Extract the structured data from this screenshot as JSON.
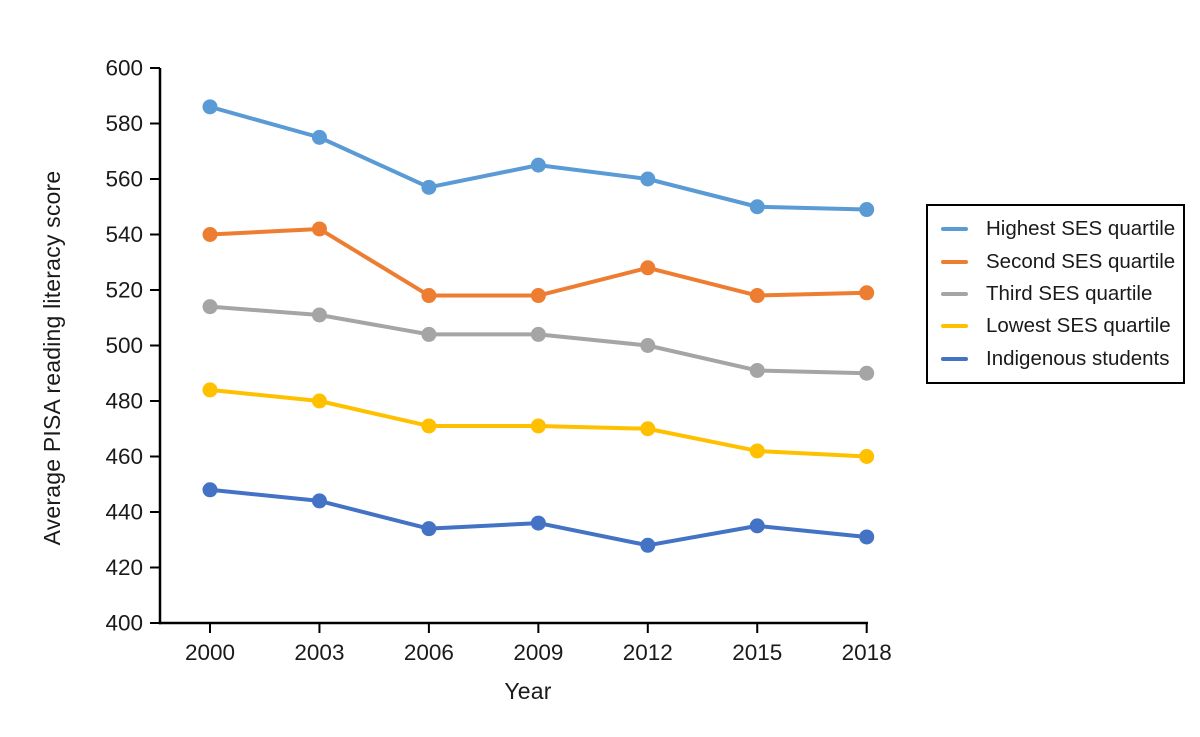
{
  "chart_data": {
    "type": "line",
    "title": "",
    "xlabel": "Year",
    "ylabel": "Average PISA reading literacy score",
    "x": [
      2000,
      2003,
      2006,
      2009,
      2012,
      2015,
      2018
    ],
    "ylim": [
      400,
      600
    ],
    "ytick_step": 20,
    "grid": false,
    "legend_position": "right-outside",
    "marker": "circle",
    "axis_color": "#000000",
    "text_color": "#1a1a1a",
    "legend_border_color": "#000000",
    "background_color": "#ffffff",
    "series": [
      {
        "name": "Highest SES quartile",
        "color": "#5B9BD5",
        "values": [
          586,
          575,
          557,
          565,
          560,
          550,
          549
        ]
      },
      {
        "name": "Second SES quartile",
        "color": "#ED7D31",
        "values": [
          540,
          542,
          518,
          518,
          528,
          518,
          519
        ]
      },
      {
        "name": "Third SES quartile",
        "color": "#A5A5A5",
        "values": [
          514,
          511,
          504,
          504,
          500,
          491,
          490
        ]
      },
      {
        "name": "Lowest SES quartile",
        "color": "#FFC000",
        "values": [
          484,
          480,
          471,
          471,
          470,
          462,
          460
        ]
      },
      {
        "name": "Indigenous students",
        "color": "#4472C4",
        "values": [
          448,
          444,
          434,
          436,
          428,
          435,
          431
        ]
      }
    ]
  }
}
